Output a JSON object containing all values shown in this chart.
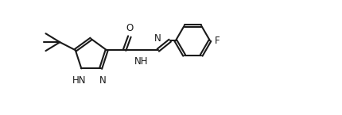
{
  "bg_color": "#ffffff",
  "line_color": "#1a1a1a",
  "line_width": 1.5,
  "font_size": 8.5,
  "xlim": [
    0,
    12.5
  ],
  "ylim": [
    0.2,
    5.2
  ],
  "figsize": [
    4.3,
    1.45
  ],
  "dpi": 100
}
